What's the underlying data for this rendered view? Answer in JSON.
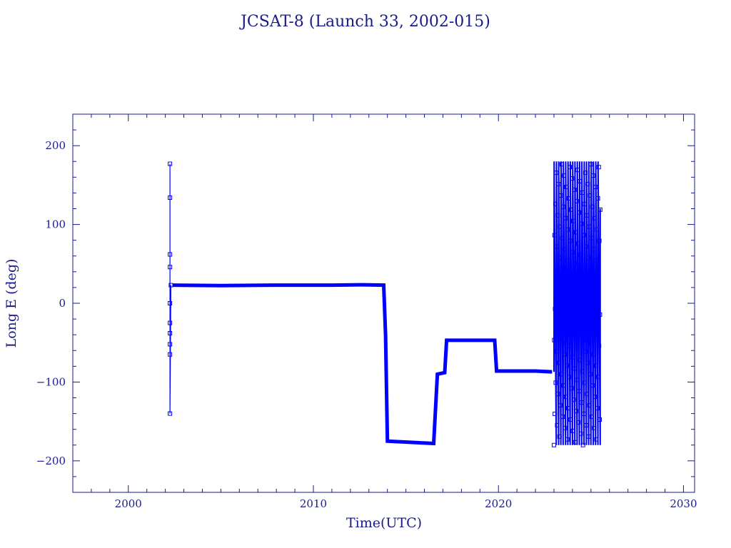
{
  "chart_data": {
    "type": "line",
    "title": "JCSAT-8 (Launch 33, 2002-015)",
    "xlabel": "Time(UTC)",
    "ylabel": "Long E (deg)",
    "xlim": [
      1997,
      2030.6
    ],
    "ylim": [
      -240,
      240
    ],
    "x_ticks": [
      2000,
      2010,
      2020,
      2030
    ],
    "x_tick_labels": [
      "2000",
      "2010",
      "2020",
      "2030"
    ],
    "y_ticks": [
      -200,
      -100,
      0,
      100,
      200
    ],
    "y_tick_labels": [
      "−200",
      "−100",
      "0",
      "100",
      "200"
    ],
    "grid": false,
    "legend": "none",
    "color": "#0000ff",
    "series": [
      {
        "segments": [
          {
            "style": "thin",
            "points": [
              [
                2002.25,
                177
              ],
              [
                2002.25,
                134
              ],
              [
                2002.25,
                62
              ],
              [
                2002.25,
                46
              ],
              [
                2002.25,
                0
              ],
              [
                2002.25,
                -25
              ],
              [
                2002.25,
                -38
              ],
              [
                2002.25,
                -52
              ],
              [
                2002.25,
                -65
              ],
              [
                2002.25,
                -140
              ],
              [
                2002.3,
                23
              ]
            ]
          },
          {
            "style": "thick",
            "points": [
              [
                2002.4,
                23
              ],
              [
                2005,
                22.5
              ],
              [
                2008,
                23
              ],
              [
                2011,
                23
              ],
              [
                2012.5,
                23.5
              ],
              [
                2013.8,
                23
              ],
              [
                2013.9,
                -40
              ],
              [
                2014,
                -175
              ],
              [
                2016.5,
                -178
              ],
              [
                2016.7,
                -90
              ],
              [
                2017.1,
                -88
              ],
              [
                2017.2,
                -47
              ],
              [
                2019.8,
                -47
              ],
              [
                2019.9,
                -86
              ],
              [
                2022,
                -86
              ],
              [
                2022.9,
                -87
              ]
            ]
          }
        ],
        "oscillation": {
          "x_start": 2023.0,
          "x_end": 2025.5,
          "cycles": 10,
          "max": 180,
          "min": -180,
          "end_values": [
            120,
            -150
          ]
        }
      }
    ]
  }
}
